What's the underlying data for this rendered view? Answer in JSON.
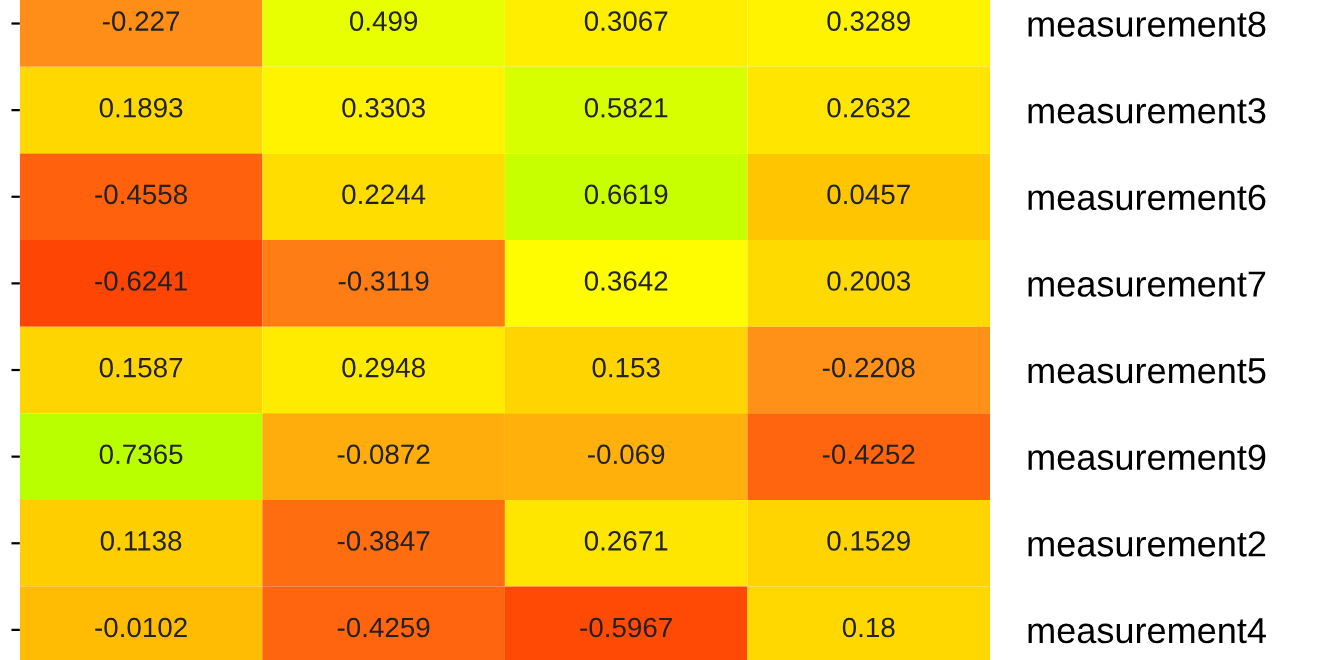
{
  "chart_data": {
    "type": "heatmap",
    "categories": [
      null,
      null,
      null,
      null
    ],
    "y_categories": [
      "measurement8",
      "measurement3",
      "measurement6",
      "measurement7",
      "measurement5",
      "measurement9",
      "measurement2",
      "measurement4"
    ],
    "cells": [
      [
        -0.227,
        0.499,
        0.3067,
        0.3289
      ],
      [
        0.1893,
        0.3303,
        0.5821,
        0.2632
      ],
      [
        -0.4558,
        0.2244,
        0.6619,
        0.0457
      ],
      [
        -0.6241,
        -0.3119,
        0.3642,
        0.2003
      ],
      [
        0.1587,
        0.2948,
        0.153,
        -0.2208
      ],
      [
        0.7365,
        -0.0872,
        -0.069,
        -0.4252
      ],
      [
        0.1138,
        -0.3847,
        0.2671,
        0.1529
      ],
      [
        -0.0102,
        -0.4259,
        -0.5967,
        0.18
      ]
    ],
    "data_labels": true
  }
}
